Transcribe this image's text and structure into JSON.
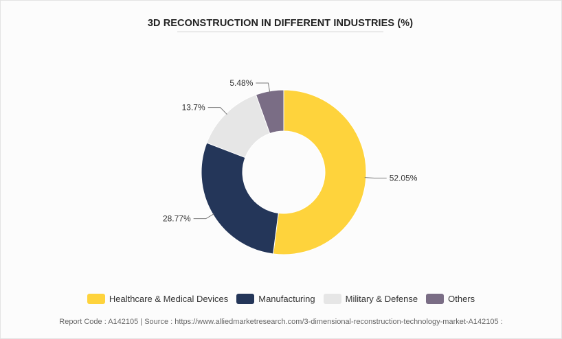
{
  "chart_data": {
    "type": "pie",
    "style": "donut",
    "title": "3D RECONSTRUCTION IN DIFFERENT INDUSTRIES (%)",
    "categories": [
      "Healthcare & Medical Devices",
      "Manufacturing",
      "Military & Defense",
      "Others"
    ],
    "values": [
      52.05,
      28.77,
      13.7,
      5.48
    ],
    "data_labels": [
      "52.05%",
      "28.77%",
      "13.7%",
      "5.48%"
    ],
    "colors": [
      "#fed33c",
      "#243659",
      "#e6e6e6",
      "#7a6d85"
    ],
    "legend_position": "bottom"
  },
  "legend": {
    "items": [
      {
        "label": "Healthcare & Medical Devices",
        "color": "#fed33c"
      },
      {
        "label": "Manufacturing",
        "color": "#243659"
      },
      {
        "label": "Military & Defense",
        "color": "#e6e6e6"
      },
      {
        "label": "Others",
        "color": "#7a6d85"
      }
    ]
  },
  "footer": {
    "text": "Report Code : A142105  |  Source : https://www.alliedmarketresearch.com/3-dimensional-reconstruction-technology-market-A142105 :"
  }
}
